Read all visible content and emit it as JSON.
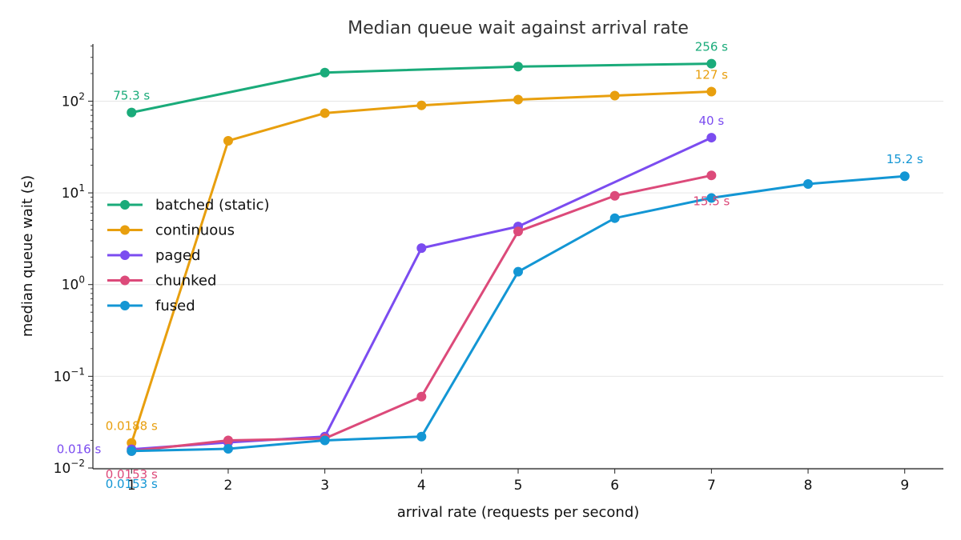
{
  "chart_data": {
    "type": "line",
    "title": "Median queue wait against arrival rate",
    "xlabel": "arrival rate (requests per second)",
    "ylabel": "median queue wait (s)",
    "yscale": "log",
    "xlim": [
      0.6,
      9.4
    ],
    "ylim": [
      0.0098,
      420
    ],
    "x_ticks": [
      1,
      2,
      3,
      4,
      5,
      6,
      7,
      8,
      9
    ],
    "y_ticks": [
      {
        "value": 0.01,
        "base": "10",
        "exp": "−2"
      },
      {
        "value": 0.1,
        "base": "10",
        "exp": "−1"
      },
      {
        "value": 1,
        "base": "10",
        "exp": "0"
      },
      {
        "value": 10,
        "base": "10",
        "exp": "1"
      },
      {
        "value": 100,
        "base": "10",
        "exp": "2"
      }
    ],
    "grid": "horizontal",
    "legend_position": "center-left",
    "series": [
      {
        "name": "batched (static)",
        "color": "#1aab7a",
        "x": [
          1,
          3,
          5,
          7
        ],
        "y": [
          75.3,
          205,
          238,
          256
        ],
        "labels": [
          {
            "x": 1,
            "text": "75.3 s",
            "pos": "above"
          },
          {
            "x": 7,
            "text": "256 s",
            "pos": "above"
          }
        ]
      },
      {
        "name": "continuous",
        "color": "#e89f0e",
        "x": [
          1,
          2,
          3,
          4,
          5,
          6,
          7
        ],
        "y": [
          0.0188,
          37,
          74,
          90,
          104,
          115,
          127
        ],
        "labels": [
          {
            "x": 1,
            "text": "0.0188 s",
            "pos": "above"
          },
          {
            "x": 7,
            "text": "127 s",
            "pos": "above"
          }
        ]
      },
      {
        "name": "paged",
        "color": "#7b4cf0",
        "x": [
          1,
          2,
          3,
          4,
          5,
          7
        ],
        "y": [
          0.016,
          0.019,
          0.022,
          2.5,
          4.3,
          40
        ],
        "labels": [
          {
            "x": 1,
            "text": "0.016 s",
            "pos": "left"
          },
          {
            "x": 7,
            "text": "40 s",
            "pos": "above"
          }
        ]
      },
      {
        "name": "chunked",
        "color": "#dc4a7a",
        "x": [
          1,
          2,
          3,
          4,
          5,
          6,
          7
        ],
        "y": [
          0.0153,
          0.02,
          0.021,
          0.06,
          3.8,
          9.3,
          15.5
        ],
        "labels": [
          {
            "x": 1,
            "text": "0.0153 s",
            "pos": "below"
          },
          {
            "x": 7,
            "text": "15.5 s",
            "pos": "below"
          }
        ]
      },
      {
        "name": "fused",
        "color": "#1396d4",
        "x": [
          1,
          2,
          3,
          4,
          5,
          6,
          7,
          8,
          9
        ],
        "y": [
          0.0153,
          0.0162,
          0.02,
          0.022,
          1.38,
          5.3,
          8.8,
          12.5,
          15.2
        ],
        "labels": [
          {
            "x": 1,
            "text": "0.0153 s",
            "pos": "below2"
          },
          {
            "x": 9,
            "text": "15.2 s",
            "pos": "above"
          }
        ]
      }
    ]
  }
}
